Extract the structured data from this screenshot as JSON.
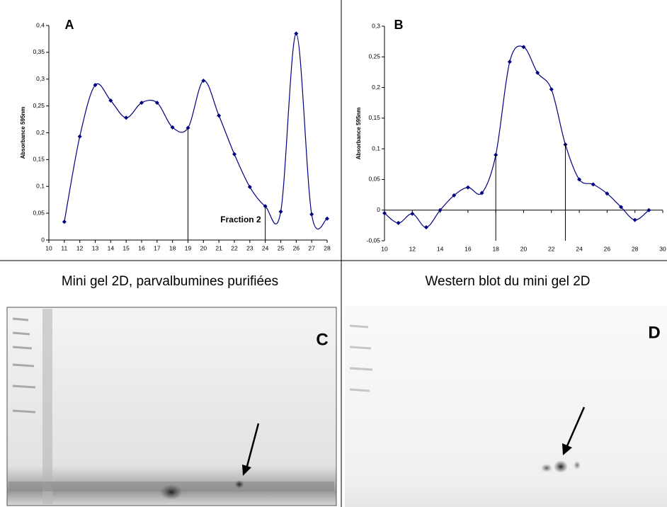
{
  "chart_data": [
    {
      "type": "line",
      "title": "A",
      "y_label": "Absorbance 595nm",
      "annotation": "Fraction 2",
      "x": [
        11,
        12,
        13,
        14,
        15,
        16,
        17,
        18,
        19,
        20,
        21,
        22,
        23,
        24,
        25,
        26,
        27,
        28
      ],
      "series": [
        {
          "color": "#000080",
          "values": [
            0.034,
            0.193,
            0.289,
            0.26,
            0.228,
            0.256,
            0.256,
            0.21,
            0.209,
            0.297,
            0.232,
            0.16,
            0.099,
            0.063,
            0.053,
            0.385,
            0.048,
            0.04
          ]
        }
      ],
      "markers": [
        19,
        24
      ],
      "xlim": [
        10,
        28
      ],
      "xticks": [
        10,
        11,
        12,
        13,
        14,
        15,
        16,
        17,
        18,
        19,
        20,
        21,
        22,
        23,
        24,
        25,
        26,
        27,
        28
      ],
      "ylim": [
        0,
        0.4
      ],
      "yticks": [
        0,
        {
          "value": 0.05,
          "label": "0,05"
        },
        {
          "value": 0.1,
          "label": "0,1"
        },
        {
          "value": 0.15,
          "label": "0,15"
        },
        {
          "value": 0.2,
          "label": "0,2"
        },
        {
          "value": 0.25,
          "label": "0,25"
        },
        {
          "value": 0.3,
          "label": "0,3"
        },
        {
          "value": 0.35,
          "label": "0,35"
        },
        {
          "value": 0.4,
          "label": "0,4"
        }
      ]
    },
    {
      "type": "line",
      "title": "B",
      "y_label": "Absorbance 595nm",
      "x": [
        10,
        11,
        12,
        13,
        14,
        15,
        16,
        17,
        18,
        19,
        20,
        21,
        22,
        23,
        24,
        25,
        26,
        27,
        28,
        29
      ],
      "series": [
        {
          "color": "#000080",
          "values": [
            -0.005,
            -0.021,
            -0.006,
            -0.028,
            0,
            0.024,
            0.037,
            0.028,
            0.09,
            0.242,
            0.266,
            0.224,
            0.197,
            0.107,
            0.05,
            0.042,
            0.027,
            0.005,
            -0.016,
            0
          ]
        }
      ],
      "markers": [
        18,
        23
      ],
      "xlim": [
        10,
        30
      ],
      "xticks": [
        10,
        12,
        14,
        16,
        18,
        20,
        22,
        24,
        26,
        28,
        30
      ],
      "ylim": [
        -0.05,
        0.3
      ],
      "yticks": [
        {
          "value": -0.05,
          "label": "-0,05"
        },
        0,
        {
          "value": 0.05,
          "label": "0,05"
        },
        {
          "value": 0.1,
          "label": "0,1"
        },
        {
          "value": 0.15,
          "label": "0,15"
        },
        {
          "value": 0.2,
          "label": "0,2"
        },
        {
          "value": 0.25,
          "label": "0,25"
        },
        {
          "value": 0.3,
          "label": "0,3"
        }
      ]
    }
  ],
  "panels": [
    {
      "label": "C",
      "caption": "Mini gel 2D, parvalbumines purifiées"
    },
    {
      "label": "D",
      "caption": "Western blot du mini gel 2D"
    }
  ]
}
